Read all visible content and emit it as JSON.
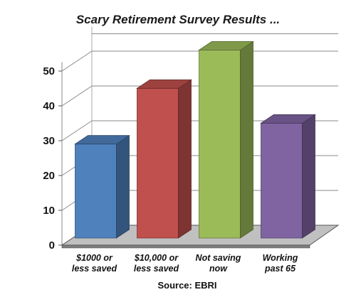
{
  "chart_data": {
    "type": "bar",
    "title": "Scary Retirement Survey Results ...",
    "categories": [
      [
        "$1000 or",
        "less saved"
      ],
      [
        "$10,000 or",
        "less saved"
      ],
      [
        "Not saving",
        "now"
      ],
      [
        "Working",
        "past 65"
      ]
    ],
    "values": [
      27,
      43,
      54,
      33
    ],
    "colors": [
      "#4f81bd",
      "#c0504d",
      "#9bbb59",
      "#8064a2"
    ],
    "yticks": [
      0,
      10,
      20,
      30,
      40,
      50
    ],
    "ylim": [
      0,
      55
    ],
    "grid": true,
    "legend": "none",
    "source": "Source: EBRI",
    "style": "3d-column"
  }
}
